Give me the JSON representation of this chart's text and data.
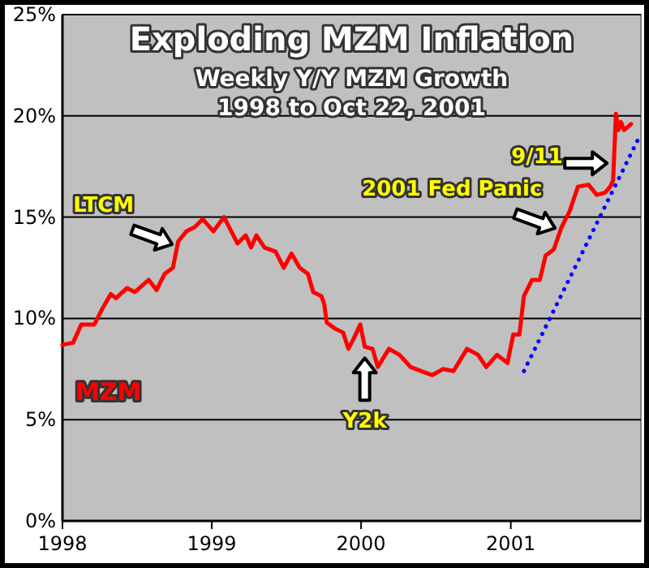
{
  "chart_data": {
    "type": "line",
    "title": "Exploding MZM Inflation",
    "subtitle": "Weekly Y/Y MZM Growth\n1998 to Oct 22, 2001",
    "xlim": [
      "1998-01-01",
      "2001-11-15"
    ],
    "xticks": [
      {
        "value": "1998-01-01",
        "label": "1998"
      },
      {
        "value": "1999-01-01",
        "label": "1999"
      },
      {
        "value": "2000-01-01",
        "label": "2000"
      },
      {
        "value": "2001-01-01",
        "label": "2001"
      }
    ],
    "ylim": [
      0,
      25
    ],
    "yticks": [
      {
        "value": 0,
        "label": "0%"
      },
      {
        "value": 5,
        "label": "5%"
      },
      {
        "value": 10,
        "label": "10%"
      },
      {
        "value": 15,
        "label": "15%"
      },
      {
        "value": 20,
        "label": "20%"
      },
      {
        "value": 25,
        "label": "25%"
      }
    ],
    "grid": "y",
    "marker": "none",
    "series": [
      {
        "name": "MZM",
        "color": "#ff0000",
        "line_style": "solid",
        "x": [
          "1998-01-01",
          "1998-01-27",
          "1998-02-16",
          "1998-03-07",
          "1998-03-20",
          "1998-04-09",
          "1998-04-29",
          "1998-05-12",
          "1998-06-08",
          "1998-06-27",
          "1998-07-31",
          "1998-08-19",
          "1998-09-08",
          "1998-09-28",
          "1998-10-11",
          "1998-10-31",
          "1998-11-20",
          "1998-12-10",
          "1999-01-05",
          "1999-01-31",
          "1999-03-05",
          "1999-03-25",
          "1999-04-07",
          "1999-04-20",
          "1999-05-10",
          "1999-06-06",
          "1999-06-26",
          "1999-07-15",
          "1999-08-04",
          "1999-08-24",
          "1999-09-06",
          "1999-09-26",
          "1999-10-03",
          "1999-10-09",
          "1999-10-29",
          "1999-11-18",
          "1999-12-01",
          "1999-12-14",
          "1999-12-30",
          "2000-01-10",
          "2000-01-29",
          "2000-02-11",
          "2000-03-09",
          "2000-04-04",
          "2000-05-01",
          "2000-05-27",
          "2000-06-23",
          "2000-07-19",
          "2000-08-14",
          "2000-09-16",
          "2000-10-13",
          "2000-11-02",
          "2000-11-28",
          "2000-12-24",
          "2001-01-07",
          "2001-01-22",
          "2001-02-02",
          "2001-02-22",
          "2001-03-13",
          "2001-03-27",
          "2001-04-16",
          "2001-05-05",
          "2001-05-25",
          "2001-06-14",
          "2001-07-10",
          "2001-07-30",
          "2001-08-19",
          "2001-09-01",
          "2001-09-08",
          "2001-09-15",
          "2001-09-21",
          "2001-09-27",
          "2001-10-05",
          "2001-10-22"
        ],
        "values": [
          8.7,
          8.8,
          9.7,
          9.7,
          9.7,
          10.5,
          11.2,
          11.0,
          11.5,
          11.3,
          11.9,
          11.4,
          12.2,
          12.5,
          13.8,
          14.3,
          14.5,
          14.9,
          14.3,
          15.0,
          13.7,
          14.1,
          13.5,
          14.1,
          13.5,
          13.3,
          12.5,
          13.2,
          12.5,
          12.2,
          11.3,
          11.1,
          10.7,
          9.8,
          9.5,
          9.3,
          8.5,
          9.0,
          9.7,
          8.6,
          8.5,
          7.6,
          8.5,
          8.2,
          7.6,
          7.4,
          7.2,
          7.5,
          7.4,
          8.5,
          8.2,
          7.6,
          8.2,
          7.8,
          9.2,
          9.2,
          11.1,
          11.9,
          11.9,
          13.1,
          13.4,
          14.5,
          15.3,
          16.5,
          16.6,
          16.1,
          16.2,
          16.5,
          16.8,
          20.1,
          19.3,
          19.7,
          19.3,
          19.6
        ]
      },
      {
        "type": "line",
        "color": "#0000ff",
        "line_style": "dotted",
        "x": [
          "2001-02-02",
          "2001-11-12"
        ],
        "values": [
          7.4,
          19.0
        ]
      }
    ],
    "annotations": [
      {
        "text": "LTCM",
        "x": "1998-10-08",
        "y": 13.5
      },
      {
        "text": "Y2k",
        "x": "2000-01-10",
        "y": 8.6
      },
      {
        "text": "2001 Fed Panic",
        "x": "2001-05-01",
        "y": 14.3
      },
      {
        "text": "9/11",
        "x": "2001-09-05",
        "y": 17.5
      }
    ]
  }
}
